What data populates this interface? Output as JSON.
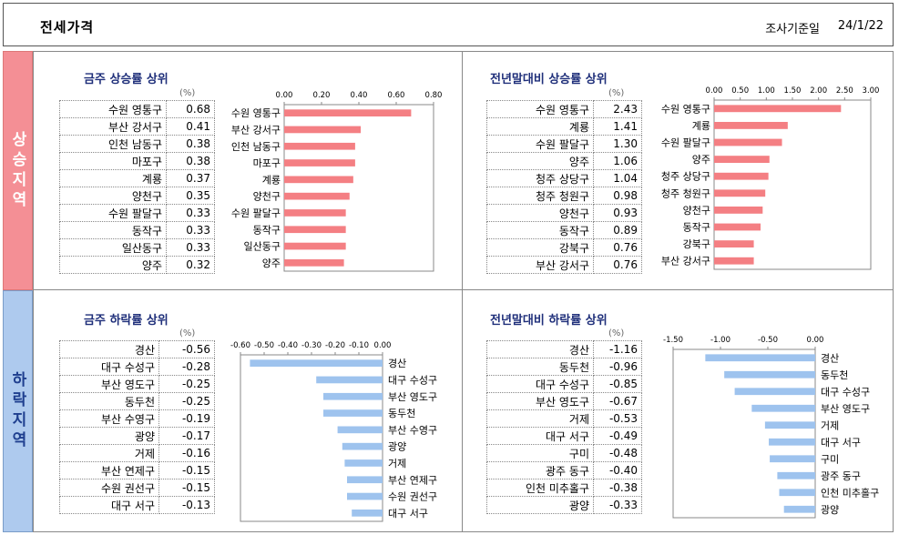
{
  "header": {
    "title": "전세가격",
    "date_label": "조사기준일",
    "date_value": "24/1/22"
  },
  "sections": {
    "up": "상승지역",
    "down": "하락지역"
  },
  "panels": [
    {
      "title": "금주 상승률 상위",
      "unit": "(%)",
      "rows": [
        {
          "name": "수원 영통구",
          "value": "0.68"
        },
        {
          "name": "부산 강서구",
          "value": "0.41"
        },
        {
          "name": "인천 남동구",
          "value": "0.38"
        },
        {
          "name": "마포구",
          "value": "0.38"
        },
        {
          "name": "계룡",
          "value": "0.37"
        },
        {
          "name": "양천구",
          "value": "0.35"
        },
        {
          "name": "수원 팔달구",
          "value": "0.33"
        },
        {
          "name": "동작구",
          "value": "0.33"
        },
        {
          "name": "일산동구",
          "value": "0.33"
        },
        {
          "name": "양주",
          "value": "0.32"
        }
      ]
    },
    {
      "title": "전년말대비 상승률 상위",
      "unit": "(%)",
      "rows": [
        {
          "name": "수원 영통구",
          "value": "2.43"
        },
        {
          "name": "계룡",
          "value": "1.41"
        },
        {
          "name": "수원 팔달구",
          "value": "1.30"
        },
        {
          "name": "양주",
          "value": "1.06"
        },
        {
          "name": "청주 상당구",
          "value": "1.04"
        },
        {
          "name": "청주 청원구",
          "value": "0.98"
        },
        {
          "name": "양천구",
          "value": "0.93"
        },
        {
          "name": "동작구",
          "value": "0.89"
        },
        {
          "name": "강북구",
          "value": "0.76"
        },
        {
          "name": "부산 강서구",
          "value": "0.76"
        }
      ]
    },
    {
      "title": "금주 하락률 상위",
      "unit": "(%)",
      "rows": [
        {
          "name": "경산",
          "value": "-0.56"
        },
        {
          "name": "대구 수성구",
          "value": "-0.28"
        },
        {
          "name": "부산 영도구",
          "value": "-0.25"
        },
        {
          "name": "동두천",
          "value": "-0.25"
        },
        {
          "name": "부산 수영구",
          "value": "-0.19"
        },
        {
          "name": "광양",
          "value": "-0.17"
        },
        {
          "name": "거제",
          "value": "-0.16"
        },
        {
          "name": "부산 연제구",
          "value": "-0.15"
        },
        {
          "name": "수원 권선구",
          "value": "-0.15"
        },
        {
          "name": "대구 서구",
          "value": "-0.13"
        }
      ]
    },
    {
      "title": "전년말대비 하락률 상위",
      "unit": "(%)",
      "rows": [
        {
          "name": "경산",
          "value": "-1.16"
        },
        {
          "name": "동두천",
          "value": "-0.96"
        },
        {
          "name": "대구 수성구",
          "value": "-0.85"
        },
        {
          "name": "부산 영도구",
          "value": "-0.67"
        },
        {
          "name": "거제",
          "value": "-0.53"
        },
        {
          "name": "대구 서구",
          "value": "-0.49"
        },
        {
          "name": "구미",
          "value": "-0.48"
        },
        {
          "name": "광주 동구",
          "value": "-0.40"
        },
        {
          "name": "인천 미추홀구",
          "value": "-0.38"
        },
        {
          "name": "광양",
          "value": "-0.33"
        }
      ]
    }
  ],
  "chart_data": [
    {
      "type": "bar",
      "orientation": "horizontal",
      "categories": [
        "수원 영통구",
        "부산 강서구",
        "인천 남동구",
        "마포구",
        "계룡",
        "양천구",
        "수원 팔달구",
        "동작구",
        "일산동구",
        "양주"
      ],
      "values": [
        0.68,
        0.41,
        0.38,
        0.38,
        0.37,
        0.35,
        0.33,
        0.33,
        0.33,
        0.32
      ],
      "xlim": [
        0,
        0.8
      ],
      "ticks": [
        "0.00",
        "0.20",
        "0.40",
        "0.60",
        "0.80"
      ],
      "color": "#f47f83"
    },
    {
      "type": "bar",
      "orientation": "horizontal",
      "categories": [
        "수원 영통구",
        "계룡",
        "수원 팔달구",
        "양주",
        "청주 상당구",
        "청주 청원구",
        "양천구",
        "동작구",
        "강북구",
        "부산 강서구"
      ],
      "values": [
        2.43,
        1.41,
        1.3,
        1.06,
        1.04,
        0.98,
        0.93,
        0.89,
        0.76,
        0.76
      ],
      "xlim": [
        0,
        3.0
      ],
      "ticks": [
        "0.00",
        "0.50",
        "1.00",
        "1.50",
        "2.00",
        "2.50",
        "3.00"
      ],
      "color": "#f47f83"
    },
    {
      "type": "bar",
      "orientation": "horizontal",
      "categories": [
        "경산",
        "대구 수성구",
        "부산 영도구",
        "동두천",
        "부산 수영구",
        "광양",
        "거제",
        "부산 연제구",
        "수원 권선구",
        "대구 서구"
      ],
      "values": [
        -0.56,
        -0.28,
        -0.25,
        -0.25,
        -0.19,
        -0.17,
        -0.16,
        -0.15,
        -0.15,
        -0.13
      ],
      "xlim": [
        -0.6,
        0.0
      ],
      "ticks": [
        "-0.60",
        "-0.50",
        "-0.40",
        "-0.30",
        "-0.20",
        "-0.10",
        "0.00"
      ],
      "color": "#9ec3ee"
    },
    {
      "type": "bar",
      "orientation": "horizontal",
      "categories": [
        "경산",
        "동두천",
        "대구 수성구",
        "부산 영도구",
        "거제",
        "대구 서구",
        "구미",
        "광주 동구",
        "인천 미추홀구",
        "광양"
      ],
      "values": [
        -1.16,
        -0.96,
        -0.85,
        -0.67,
        -0.53,
        -0.49,
        -0.48,
        -0.4,
        -0.38,
        -0.33
      ],
      "xlim": [
        -1.5,
        0.0
      ],
      "ticks": [
        "-1.50",
        "-1.00",
        "-0.50",
        "0.00"
      ],
      "color": "#9ec3ee"
    }
  ]
}
